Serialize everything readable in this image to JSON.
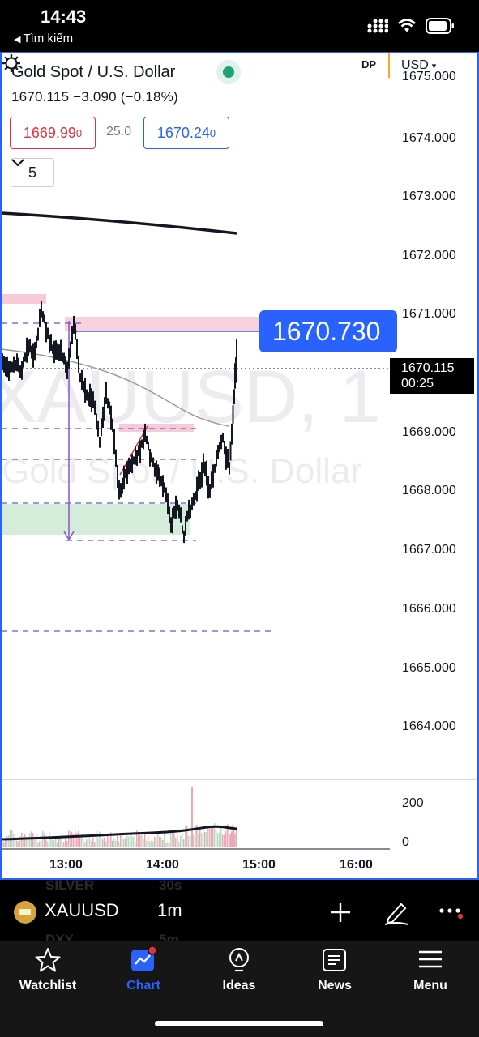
{
  "status_bar": {
    "time": "14:43",
    "back_label": "Tìm kiếm"
  },
  "chart_header": {
    "title": "Gold Spot / U.S. Dollar",
    "price_line": "1670.115  −3.090 (−0.18%)",
    "bid": "1669.99",
    "bid_sub": "0",
    "spread": "25.0",
    "ask": "1670.24",
    "ask_sub": "0",
    "indicators_count": "5",
    "dp_label": "DP",
    "currency": "USD"
  },
  "watermark": {
    "symbol": "XAUUSD, 1",
    "description": "Gold Spot / U.S. Dollar"
  },
  "price_axis": [
    "1675.000",
    "1674.000",
    "1673.000",
    "1672.000",
    "1671.000",
    "1669.000",
    "1668.000",
    "1667.000",
    "1666.000",
    "1665.000",
    "1664.000"
  ],
  "price_tags": {
    "alert_price": "1670.730",
    "last_price": "1670.115",
    "countdown": "00:25"
  },
  "volume_axis": [
    "200",
    "0"
  ],
  "time_axis": [
    "13:00",
    "14:00",
    "15:00",
    "16:00"
  ],
  "symbol_bar": {
    "symbol": "XAUUSD",
    "interval": "1m",
    "ghost_1": "SILVER",
    "ghost_2": "30s",
    "ghost_3": "DXY",
    "ghost_4": "5m"
  },
  "tabs": [
    {
      "label": "Watchlist",
      "icon": "star-icon"
    },
    {
      "label": "Chart",
      "icon": "chart-icon"
    },
    {
      "label": "Ideas",
      "icon": "lightbulb-icon"
    },
    {
      "label": "News",
      "icon": "newspaper-icon"
    },
    {
      "label": "Menu",
      "icon": "hamburger-icon"
    }
  ],
  "colors": {
    "accent": "#2962ff",
    "bid": "#e0323c",
    "live": "#22a079",
    "zone_pink": "#f8c9d6",
    "zone_green": "#cde9d3",
    "frame_border": "#2962ff"
  }
}
